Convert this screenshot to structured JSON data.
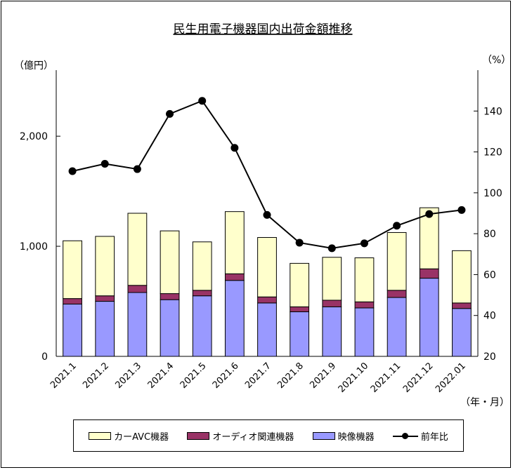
{
  "chart_data": {
    "type": "bar",
    "title": "民生用電子機器国内出荷金額推移",
    "left_unit": "（億円）",
    "right_unit": "（%）",
    "x_unit": "（年・月）",
    "categories": [
      "2021.1",
      "2021.2",
      "2021.3",
      "2021.4",
      "2021.5",
      "2021.6",
      "2021.7",
      "2021.8",
      "2021.9",
      "2021.10",
      "2021.11",
      "2021.12",
      "2022.01"
    ],
    "ylim": [
      0,
      2600
    ],
    "y_ticks": [
      0,
      1000,
      2000
    ],
    "y_tick_labels": [
      "0",
      "1,000",
      "2,000"
    ],
    "y2lim": [
      20,
      160
    ],
    "y2_ticks": [
      20,
      40,
      60,
      80,
      100,
      120,
      140
    ],
    "stacked": true,
    "series": [
      {
        "name": "映像機器",
        "color": "#9999FF",
        "values": [
          475,
          500,
          580,
          515,
          550,
          690,
          485,
          405,
          450,
          440,
          535,
          710,
          435
        ]
      },
      {
        "name": "オーディオ関連機器",
        "color": "#993366",
        "values": [
          50,
          50,
          65,
          55,
          50,
          60,
          55,
          45,
          60,
          55,
          65,
          85,
          50
        ]
      },
      {
        "name": "カーAVC機器",
        "color": "#FFFFCC",
        "values": [
          525,
          540,
          655,
          570,
          440,
          565,
          540,
          395,
          390,
          400,
          525,
          555,
          475
        ]
      },
      {
        "name": "前年比",
        "type": "line",
        "axis": "right",
        "color": "#000000",
        "values": [
          110.6,
          114.2,
          111.6,
          138.6,
          145.0,
          122.0,
          89.2,
          75.6,
          72.9,
          75.3,
          83.9,
          89.6,
          91.6
        ]
      }
    ],
    "legend": {
      "position": "bottom",
      "items": [
        {
          "label": "カーAVC機器",
          "kind": "box",
          "color": "#FFFFCC"
        },
        {
          "label": "オーディオ関連機器",
          "kind": "box",
          "color": "#993366"
        },
        {
          "label": "映像機器",
          "kind": "box",
          "color": "#9999FF"
        },
        {
          "label": "前年比",
          "kind": "line",
          "color": "#000000"
        }
      ]
    },
    "grid": false
  }
}
